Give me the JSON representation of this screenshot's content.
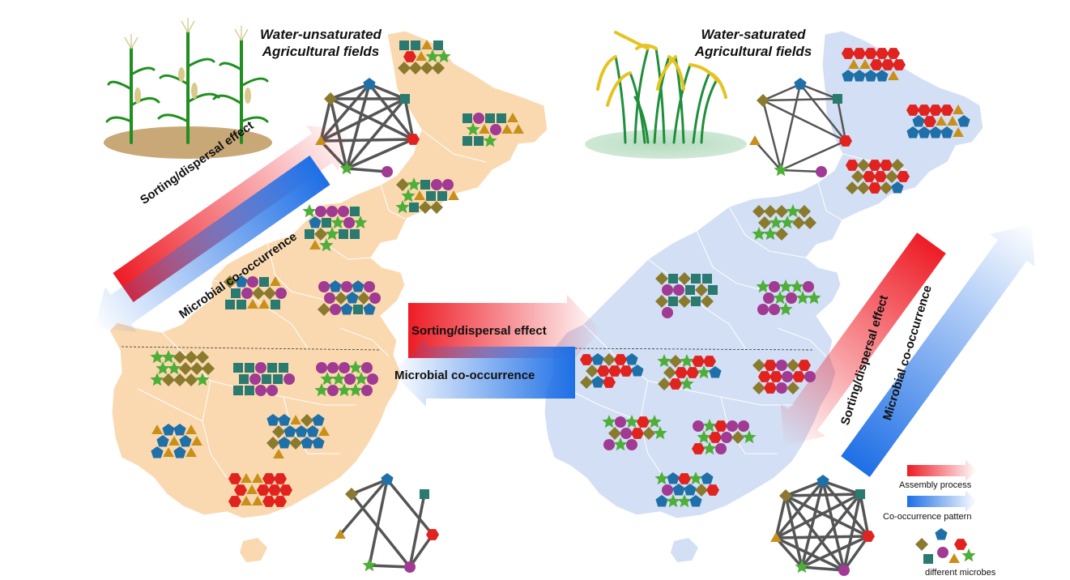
{
  "left_panel": {
    "title_line1": "Water-unsaturated",
    "title_line2": "Agricultural fields",
    "arrow_sorting": "Sorting/dispersal effect",
    "arrow_cooccurrence": "Microbial co-occurrence"
  },
  "right_panel": {
    "title_line1": "Water-saturated",
    "title_line2": "Agricultural fields",
    "arrow_sorting": "Sorting/dispersal effect",
    "arrow_cooccurrence": "Microbial co-occurrence"
  },
  "center": {
    "arrow_sorting": "Sorting/dispersal effect",
    "arrow_cooccurrence": "Microbial co-occurrence"
  },
  "legend": {
    "assembly": "Assembly process",
    "cooccurrence": "Co-occurrence pattern",
    "microbes": "different microbes"
  },
  "colors": {
    "left_map": "#fad9b0",
    "right_map": "#d3dff4",
    "triangle": "#c8901a",
    "diamond": "#8a7a2e",
    "square": "#2a7a70",
    "circle": "#a03a92",
    "pentagon": "#1f6fa8",
    "hexagon": "#e0231f",
    "star": "#4fae3a",
    "red_arrow": "#ee2a2a",
    "blue_arrow": "#2a7de8"
  }
}
